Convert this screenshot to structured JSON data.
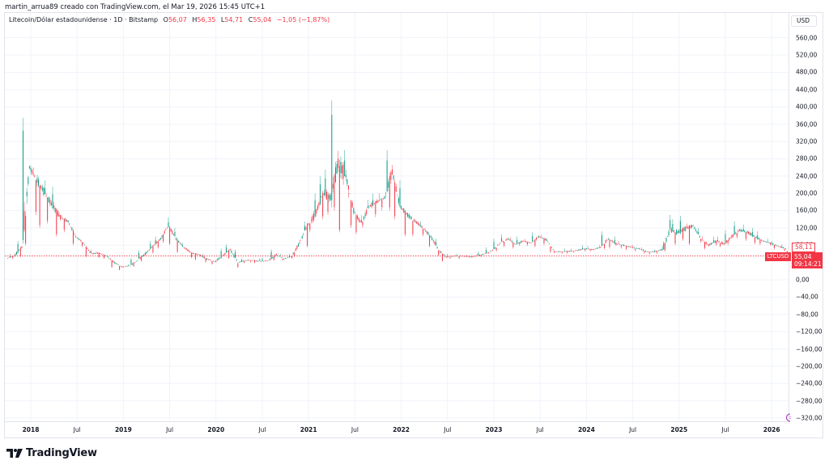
{
  "attribution": "martin_arrua89 creado con TradingView.com, el Mar 19, 2026 15:45 UTC+1",
  "legend": {
    "symbol_title": "Litecoin/Dólar estadounidense · 1D · Bitstamp",
    "open_label": "O",
    "open": "56,07",
    "high_label": "H",
    "high": "56,35",
    "low_label": "L",
    "low": "54,71",
    "close_label": "C",
    "close": "55,04",
    "change": "−1,05 (−1,87%)"
  },
  "price_axis": {
    "currency": "USD",
    "ticks": [
      "560,00",
      "520,00",
      "480,00",
      "440,00",
      "400,00",
      "360,00",
      "320,00",
      "280,00",
      "240,00",
      "200,00",
      "160,00",
      "120,00",
      "80,00",
      "0,00",
      "−40,00",
      "−80,00",
      "−120,00",
      "−160,00",
      "−200,00",
      "−240,00",
      "−280,00",
      "−320,00"
    ]
  },
  "markers": {
    "prev_close": "58,11",
    "last_price": "55,04",
    "countdown": "09:14:21",
    "symbol": "LTCUSD"
  },
  "time_axis": {
    "ticks": [
      {
        "label": "2018",
        "year": true
      },
      {
        "label": "Jul",
        "year": false
      },
      {
        "label": "2019",
        "year": true
      },
      {
        "label": "Jul",
        "year": false
      },
      {
        "label": "2020",
        "year": true
      },
      {
        "label": "Jul",
        "year": false
      },
      {
        "label": "2021",
        "year": true
      },
      {
        "label": "Jul",
        "year": false
      },
      {
        "label": "2022",
        "year": true
      },
      {
        "label": "Jul",
        "year": false
      },
      {
        "label": "2023",
        "year": true
      },
      {
        "label": "Jul",
        "year": false
      },
      {
        "label": "2024",
        "year": true
      },
      {
        "label": "Jul",
        "year": false
      },
      {
        "label": "2025",
        "year": true
      },
      {
        "label": "Jul",
        "year": false
      },
      {
        "label": "2026",
        "year": true
      }
    ]
  },
  "colors": {
    "up": "#089981",
    "down": "#f23645",
    "grid": "#f0f3fa",
    "text": "#131722",
    "event": "#b548c6"
  },
  "brand": {
    "name": "TradingView"
  },
  "chart_data": {
    "type": "candlestick",
    "title": "Litecoin/Dólar estadounidense · 1D · Bitstamp",
    "symbol": "LTCUSD",
    "xlabel": "",
    "ylabel": "USD",
    "ylim": [
      -330,
      590
    ],
    "grid": true,
    "last_close": 55.04,
    "prev_close": 58.11,
    "ohlc_last": {
      "open": 56.07,
      "high": 56.35,
      "low": 54.71,
      "close": 55.04,
      "change": -1.05,
      "change_pct": -1.87
    },
    "x": [
      "2017-10",
      "2017-11",
      "2017-12",
      "2018-01",
      "2018-02",
      "2018-03",
      "2018-04",
      "2018-05",
      "2018-06",
      "2018-07",
      "2018-08",
      "2018-09",
      "2018-10",
      "2018-11",
      "2018-12",
      "2019-01",
      "2019-02",
      "2019-03",
      "2019-04",
      "2019-05",
      "2019-06",
      "2019-07",
      "2019-08",
      "2019-09",
      "2019-10",
      "2019-11",
      "2019-12",
      "2020-01",
      "2020-02",
      "2020-03",
      "2020-04",
      "2020-05",
      "2020-06",
      "2020-07",
      "2020-08",
      "2020-09",
      "2020-10",
      "2020-11",
      "2020-12",
      "2021-01",
      "2021-02",
      "2021-03",
      "2021-04",
      "2021-05",
      "2021-06",
      "2021-07",
      "2021-08",
      "2021-09",
      "2021-10",
      "2021-11",
      "2021-12",
      "2022-01",
      "2022-02",
      "2022-03",
      "2022-04",
      "2022-05",
      "2022-06",
      "2022-07",
      "2022-08",
      "2022-09",
      "2022-10",
      "2022-11",
      "2022-12",
      "2023-01",
      "2023-02",
      "2023-03",
      "2023-04",
      "2023-05",
      "2023-06",
      "2023-07",
      "2023-08",
      "2023-09",
      "2023-10",
      "2023-11",
      "2023-12",
      "2024-01",
      "2024-02",
      "2024-03",
      "2024-04",
      "2024-05",
      "2024-06",
      "2024-07",
      "2024-08",
      "2024-09",
      "2024-10",
      "2024-11",
      "2024-12",
      "2025-01",
      "2025-02",
      "2025-03",
      "2025-04",
      "2025-05",
      "2025-06",
      "2025-07",
      "2025-08",
      "2025-09",
      "2025-10",
      "2025-11",
      "2025-12",
      "2026-01",
      "2026-02",
      "2026-03"
    ],
    "close": [
      55,
      75,
      260,
      230,
      200,
      170,
      145,
      135,
      100,
      85,
      60,
      62,
      55,
      40,
      30,
      32,
      45,
      60,
      78,
      95,
      125,
      95,
      75,
      62,
      58,
      48,
      42,
      55,
      70,
      40,
      45,
      45,
      42,
      45,
      58,
      48,
      55,
      85,
      125,
      150,
      200,
      190,
      270,
      240,
      160,
      130,
      170,
      180,
      190,
      250,
      170,
      150,
      135,
      120,
      100,
      70,
      52,
      55,
      55,
      53,
      55,
      60,
      68,
      85,
      95,
      82,
      90,
      85,
      100,
      92,
      65,
      65,
      66,
      68,
      72,
      70,
      75,
      95,
      83,
      80,
      75,
      72,
      65,
      65,
      70,
      115,
      110,
      118,
      125,
      95,
      80,
      90,
      83,
      100,
      115,
      110,
      100,
      90,
      85,
      78,
      72,
      55
    ],
    "high": [
      60,
      90,
      375,
      260,
      230,
      215,
      180,
      150,
      120,
      95,
      70,
      66,
      60,
      50,
      38,
      36,
      50,
      68,
      90,
      100,
      145,
      120,
      85,
      70,
      62,
      60,
      48,
      72,
      82,
      70,
      50,
      48,
      50,
      52,
      70,
      60,
      60,
      92,
      135,
      200,
      240,
      255,
      415,
      300,
      190,
      150,
      185,
      200,
      200,
      300,
      230,
      160,
      150,
      135,
      110,
      95,
      60,
      60,
      60,
      58,
      60,
      66,
      75,
      95,
      105,
      98,
      100,
      95,
      110,
      105,
      90,
      68,
      72,
      72,
      80,
      78,
      80,
      112,
      100,
      90,
      80,
      80,
      75,
      70,
      78,
      150,
      140,
      148,
      130,
      120,
      100,
      100,
      100,
      115,
      135,
      128,
      120,
      112,
      95,
      90,
      82,
      60
    ],
    "low": [
      48,
      52,
      80,
      150,
      120,
      130,
      100,
      110,
      80,
      75,
      52,
      50,
      48,
      28,
      22,
      28,
      30,
      42,
      60,
      72,
      85,
      80,
      62,
      50,
      45,
      40,
      35,
      40,
      48,
      28,
      38,
      40,
      38,
      42,
      44,
      44,
      48,
      52,
      75,
      110,
      140,
      150,
      160,
      110,
      120,
      105,
      120,
      145,
      160,
      160,
      140,
      100,
      100,
      100,
      75,
      55,
      42,
      48,
      48,
      50,
      50,
      52,
      60,
      65,
      75,
      72,
      78,
      78,
      75,
      80,
      62,
      60,
      60,
      62,
      65,
      65,
      68,
      70,
      72,
      72,
      68,
      65,
      60,
      58,
      60,
      65,
      80,
      90,
      80,
      85,
      70,
      78,
      75,
      80,
      95,
      90,
      82,
      80,
      78,
      70,
      65,
      52
    ]
  }
}
